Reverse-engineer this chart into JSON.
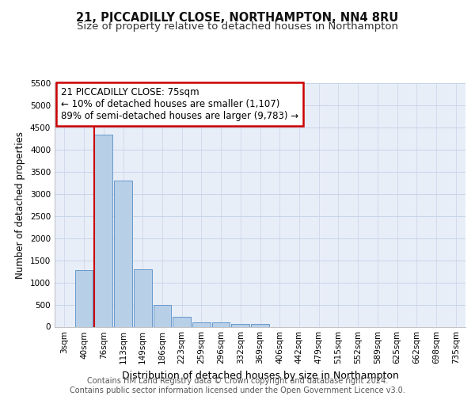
{
  "title_line1": "21, PICCADILLY CLOSE, NORTHAMPTON, NN4 8RU",
  "title_line2": "Size of property relative to detached houses in Northampton",
  "xlabel": "Distribution of detached houses by size in Northampton",
  "ylabel": "Number of detached properties",
  "categories": [
    "3sqm",
    "40sqm",
    "76sqm",
    "113sqm",
    "149sqm",
    "186sqm",
    "223sqm",
    "259sqm",
    "296sqm",
    "332sqm",
    "369sqm",
    "406sqm",
    "442sqm",
    "479sqm",
    "515sqm",
    "552sqm",
    "589sqm",
    "625sqm",
    "662sqm",
    "698sqm",
    "735sqm"
  ],
  "values": [
    0,
    1270,
    4340,
    3300,
    1290,
    490,
    230,
    90,
    90,
    55,
    55,
    0,
    0,
    0,
    0,
    0,
    0,
    0,
    0,
    0,
    0
  ],
  "bar_color": "#b8cfe8",
  "bar_edge_color": "#6699cc",
  "vline_color": "#cc0000",
  "annotation_box_text": "21 PICCADILLY CLOSE: 75sqm\n← 10% of detached houses are smaller (1,107)\n89% of semi-detached houses are larger (9,783) →",
  "annotation_box_color": "#cc0000",
  "annotation_box_facecolor": "white",
  "ylim": [
    0,
    5500
  ],
  "yticks": [
    0,
    500,
    1000,
    1500,
    2000,
    2500,
    3000,
    3500,
    4000,
    4500,
    5000,
    5500
  ],
  "grid_color": "#c8d4e8",
  "bg_color": "#e8eef8",
  "footer": "Contains HM Land Registry data © Crown copyright and database right 2024.\nContains public sector information licensed under the Open Government Licence v3.0.",
  "title_fontsize": 10.5,
  "subtitle_fontsize": 9.5,
  "xlabel_fontsize": 9,
  "ylabel_fontsize": 8.5,
  "tick_fontsize": 7.5,
  "footer_fontsize": 7,
  "annot_fontsize": 8.5
}
